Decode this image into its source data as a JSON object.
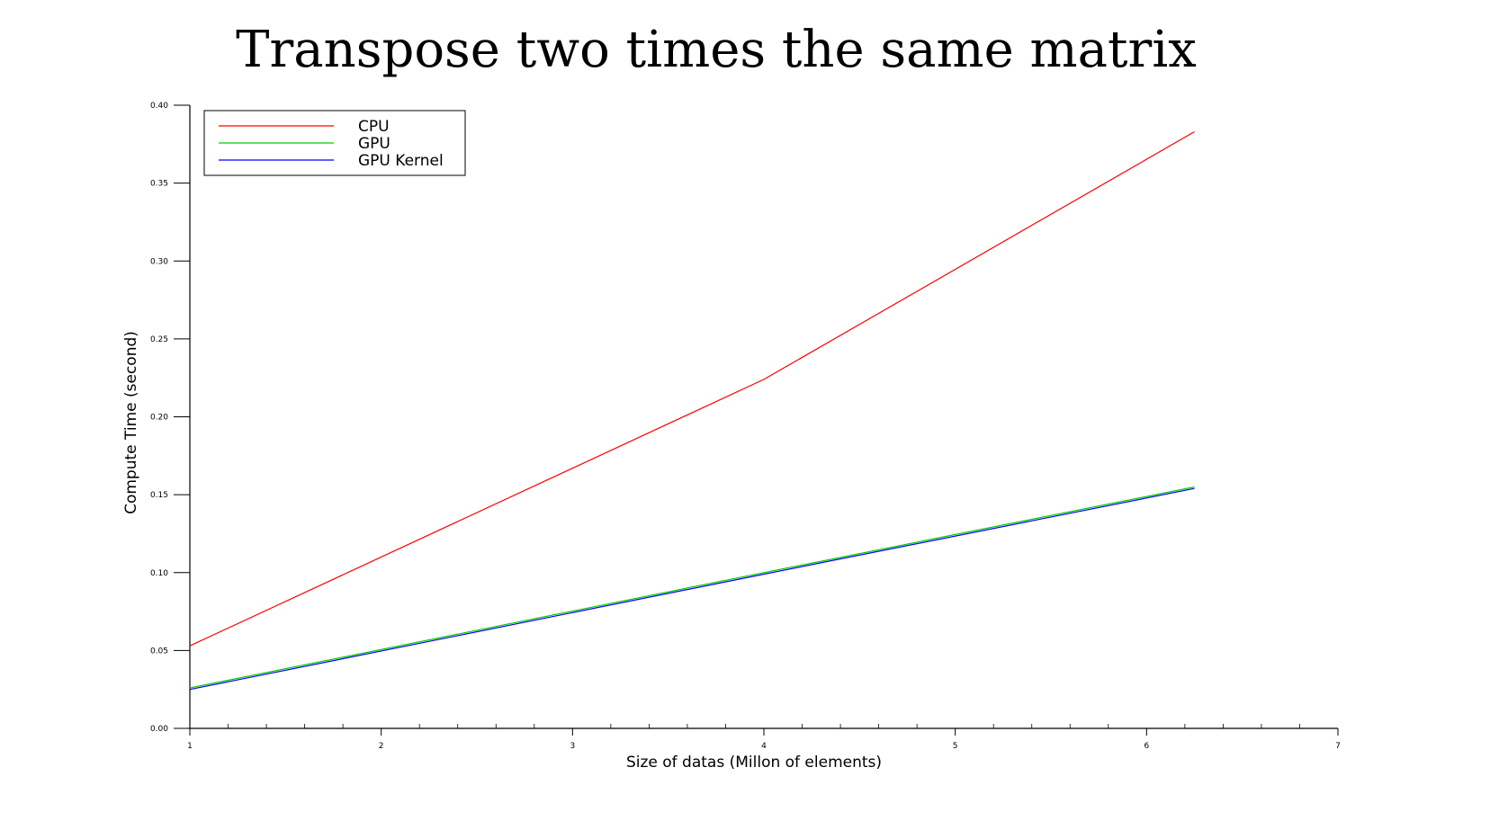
{
  "chart_data": {
    "type": "line",
    "title": "Transpose two times the same matrix",
    "xlabel": "Size of datas (Millon of elements)",
    "ylabel": "Compute Time (second)",
    "xlim": [
      1,
      7
    ],
    "ylim": [
      0,
      0.4
    ],
    "x_ticks": [
      "1",
      "2",
      "3",
      "4",
      "5",
      "6",
      "7"
    ],
    "y_ticks": [
      "0.00",
      "0.05",
      "0.10",
      "0.15",
      "0.20",
      "0.25",
      "0.30",
      "0.35",
      "0.40"
    ],
    "x_tick_values": [
      1,
      2,
      3,
      4,
      5,
      6,
      7
    ],
    "y_tick_values": [
      0,
      0.05,
      0.1,
      0.15,
      0.2,
      0.25,
      0.3,
      0.35,
      0.4
    ],
    "grid": false,
    "legend_position": "top-left",
    "series": [
      {
        "name": "CPU",
        "color": "#ff0000",
        "x": [
          1,
          4,
          6.25
        ],
        "y": [
          0.053,
          0.224,
          0.383
        ]
      },
      {
        "name": "GPU",
        "color": "#00cc00",
        "x": [
          1,
          4,
          6.25
        ],
        "y": [
          0.026,
          0.1,
          0.155
        ]
      },
      {
        "name": "GPU Kernel",
        "color": "#0000ff",
        "x": [
          1,
          4,
          6.25
        ],
        "y": [
          0.025,
          0.099,
          0.154
        ]
      }
    ]
  }
}
